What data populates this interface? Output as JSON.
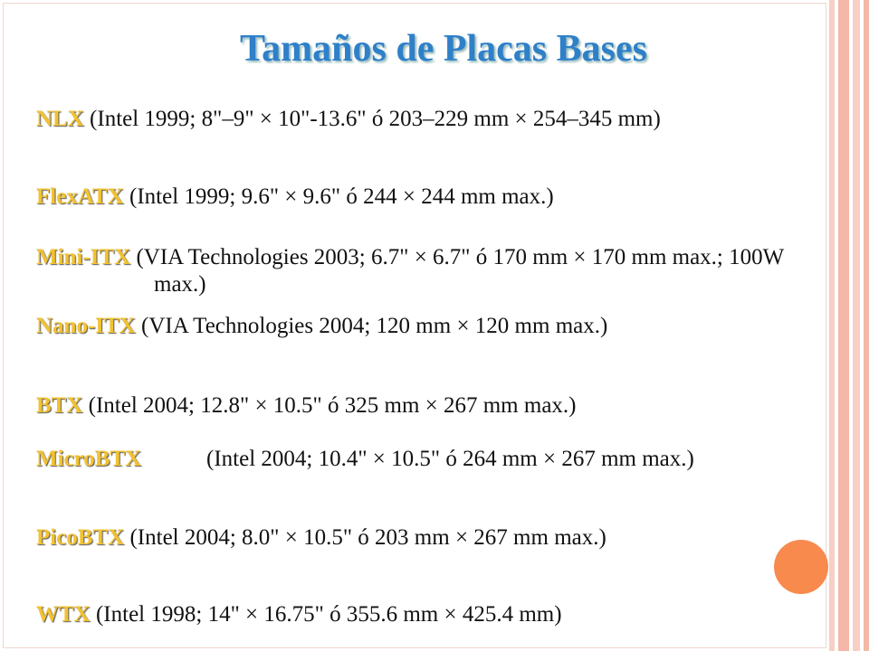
{
  "title": "Tamaños de Placas Bases",
  "items": [
    {
      "name": "NLX",
      "text": "(Intel 1999; 8\"–9\" × 10\"-13.6\" ó 203–229 mm × 254–345 mm)"
    },
    {
      "name": "FlexATX",
      "text": "(Intel 1999; 9.6\" × 9.6\" ó 244 × 244 mm max.)"
    },
    {
      "name": "Mini-ITX",
      "text": "(VIA Technologies 2003; 6.7\" × 6.7\" ó 170 mm × 170 mm max.; 100W max.)"
    },
    {
      "name": "Nano-ITX",
      "text": "(VIA Technologies 2004; 120 mm × 120 mm max.)"
    },
    {
      "name": "BTX",
      "text": "(Intel 2004; 12.8\" × 10.5\" ó 325 mm × 267 mm max.)"
    },
    {
      "name": "MicroBTX",
      "text": "(Intel 2004; 10.4\" × 10.5\" ó 264 mm × 267 mm max.)"
    },
    {
      "name": "PicoBTX",
      "text": "(Intel 2004; 8.0\" × 10.5\" ó 203 mm × 267 mm max.)"
    },
    {
      "name": "WTX",
      "text": "(Intel 1998; 14\" × 16.75\" ó 355.6 mm × 425.4 mm)"
    }
  ]
}
